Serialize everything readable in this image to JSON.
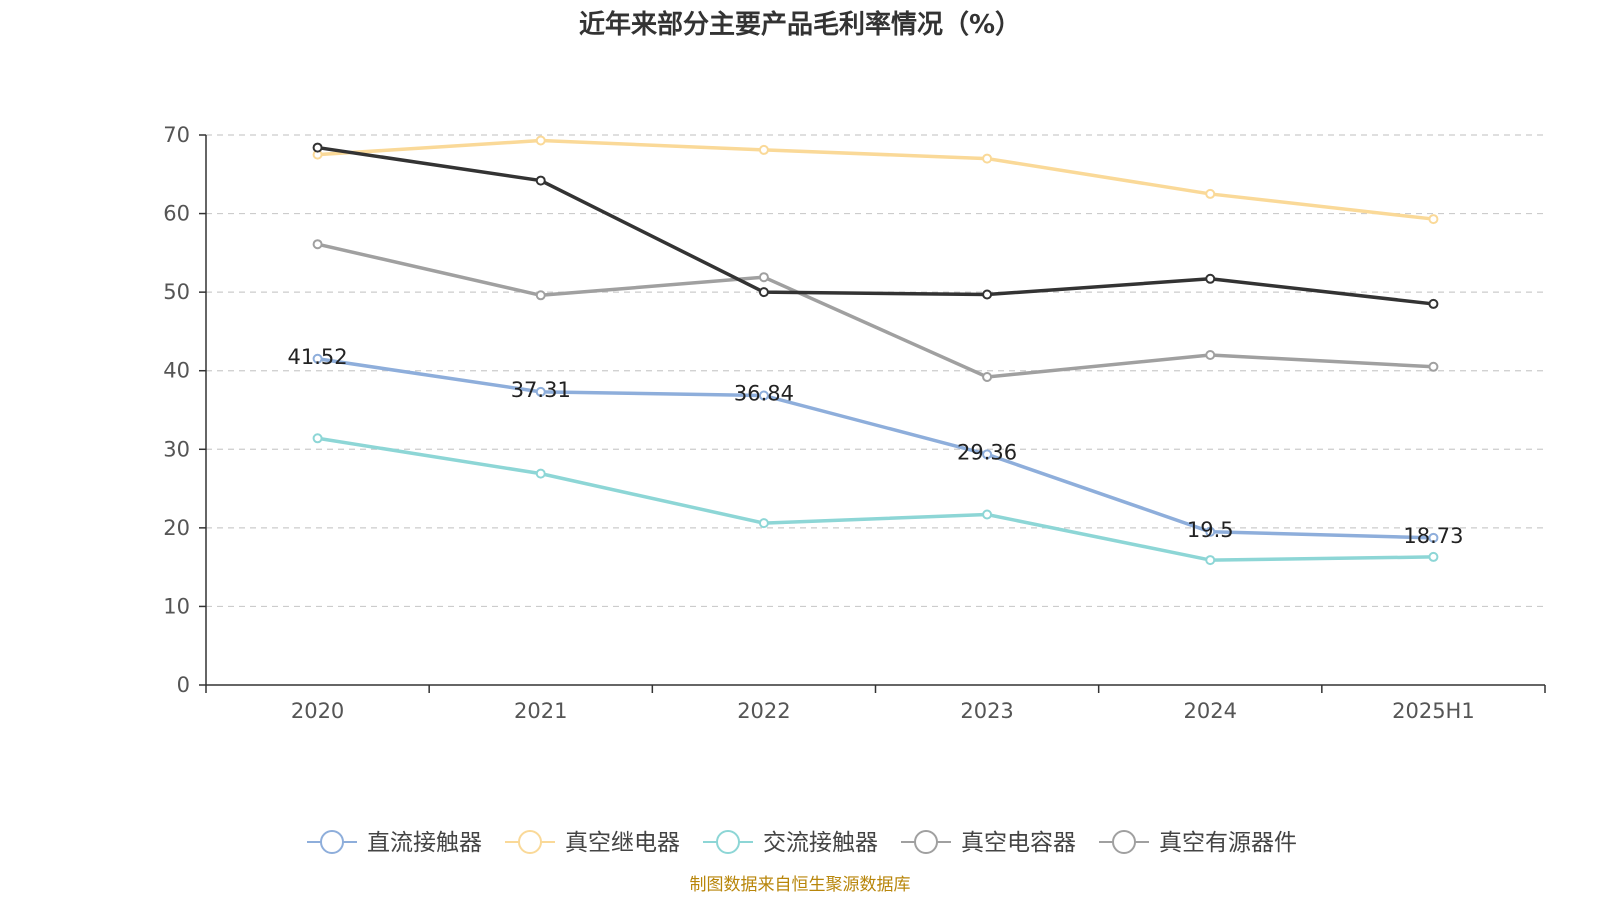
{
  "chart_data": {
    "type": "line",
    "title": "近年来部分主要产品毛利率情况（%）",
    "categories": [
      "2020",
      "2021",
      "2022",
      "2023",
      "2024",
      "2025H1"
    ],
    "ylim": [
      0,
      70
    ],
    "yticks": [
      0,
      10,
      20,
      30,
      40,
      50,
      60,
      70
    ],
    "grid": true,
    "legend_position": "bottom",
    "series": [
      {
        "name": "直流接触器",
        "color": "#8eaedb",
        "values": [
          41.52,
          37.31,
          36.84,
          29.36,
          19.5,
          18.73
        ],
        "show_labels": true,
        "labels": [
          "41.52",
          "37.31",
          "36.84",
          "29.36",
          "19.5",
          "18.73"
        ]
      },
      {
        "name": "真空继电器",
        "color": "#fad998",
        "values": [
          67.5,
          69.3,
          68.1,
          67.0,
          62.5,
          59.3
        ],
        "show_labels": false
      },
      {
        "name": "交流接触器",
        "color": "#8dd6d6",
        "values": [
          31.4,
          26.9,
          20.6,
          21.7,
          15.9,
          16.3
        ],
        "show_labels": false
      },
      {
        "name": "真空电容器",
        "color": "#a0a0a0",
        "values": [
          56.1,
          49.6,
          51.9,
          39.2,
          42.0,
          40.5
        ],
        "show_labels": false
      },
      {
        "name": "真空有源器件",
        "color": "#333333",
        "legend_color": "#a0a0a0",
        "values": [
          68.4,
          64.2,
          50.0,
          49.7,
          51.7,
          48.5
        ],
        "show_labels": false
      }
    ]
  },
  "source_text": "制图数据来自恒生聚源数据库"
}
